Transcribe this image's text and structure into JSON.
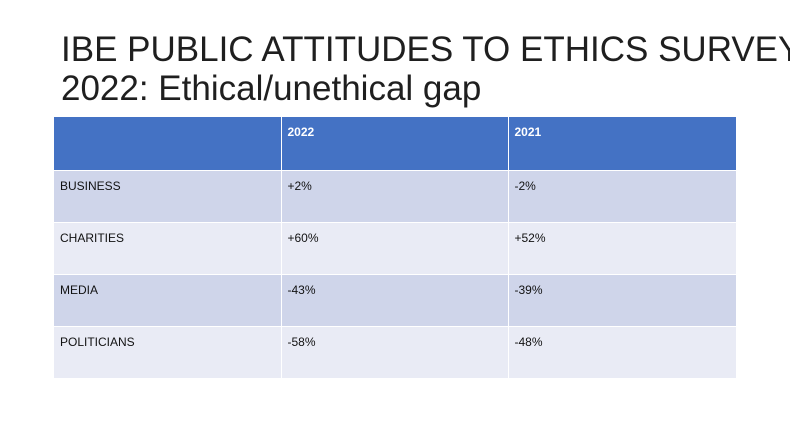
{
  "slide": {
    "title_line1": "IBE PUBLIC ATTITUDES TO ETHICS SURVEY",
    "title_line2": "2022: Ethical/unethical gap"
  },
  "table": {
    "header": [
      "",
      "2022",
      "2021"
    ],
    "rows": [
      [
        "BUSINESS",
        "+2%",
        "-2%"
      ],
      [
        "CHARITIES",
        "+60%",
        "+52%"
      ],
      [
        "MEDIA",
        "-43%",
        "-39%"
      ],
      [
        "POLITICIANS",
        "-58%",
        "-48%"
      ]
    ],
    "colors": {
      "header_bg": "#4472c4",
      "row_band_dark": "#cfd5ea",
      "row_band_light": "#e9ebf5"
    }
  }
}
